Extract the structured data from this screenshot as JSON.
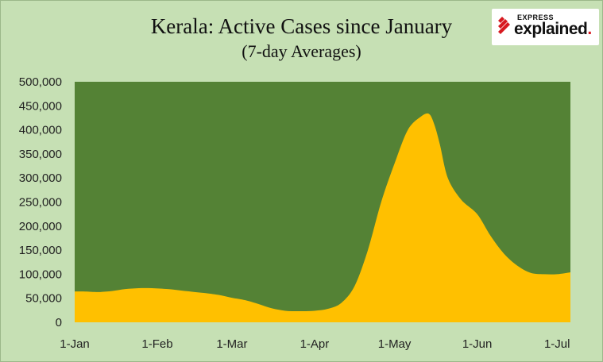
{
  "brand": {
    "top_text": "EXPRESS",
    "main_text": "explained",
    "logo_color": "#d71920"
  },
  "chart_data": {
    "type": "area",
    "title": "Kerala: Active Cases since January",
    "subtitle": "(7-day Averages)",
    "xlabel": "",
    "ylabel": "",
    "y_ticks": [
      "0",
      "50,000",
      "100,000",
      "150,000",
      "200,000",
      "250,000",
      "300,000",
      "350,000",
      "400,000",
      "450,000",
      "500,000"
    ],
    "ylim": [
      0,
      500000
    ],
    "x_ticks": [
      {
        "label": "1-Jan",
        "day": 0
      },
      {
        "label": "1-Feb",
        "day": 31
      },
      {
        "label": "1-Mar",
        "day": 59
      },
      {
        "label": "1-Apr",
        "day": 90
      },
      {
        "label": "1-May",
        "day": 120
      },
      {
        "label": "1-Jun",
        "day": 151
      },
      {
        "label": "1-Jul",
        "day": 181
      }
    ],
    "x_range_days": [
      0,
      186
    ],
    "plot_background": "#548235",
    "fill_color": "#ffc000",
    "grid": false,
    "legend": "none",
    "series": [
      {
        "x": [
          "1-Jan",
          "5-Jan",
          "10-Jan",
          "15-Jan",
          "20-Jan",
          "25-Jan",
          "30-Jan",
          "5-Feb",
          "10-Feb",
          "15-Feb",
          "20-Feb",
          "25-Feb",
          "1-Mar",
          "6-Mar",
          "11-Mar",
          "16-Mar",
          "21-Mar",
          "26-Mar",
          "1-Apr",
          "6-Apr",
          "11-Apr",
          "16-Apr",
          "21-Apr",
          "26-Apr",
          "1-May",
          "6-May",
          "11-May",
          "14-May",
          "16-May",
          "18-May",
          "21-May",
          "26-May",
          "1-Jun",
          "6-Jun",
          "11-Jun",
          "16-Jun",
          "21-Jun",
          "26-Jun",
          "1-Jul",
          "6-Jul"
        ],
        "days": [
          0,
          4,
          9,
          14,
          19,
          24,
          29,
          35,
          40,
          45,
          50,
          55,
          59,
          64,
          69,
          74,
          79,
          84,
          90,
          95,
          100,
          105,
          110,
          115,
          120,
          125,
          130,
          133,
          135,
          137,
          140,
          145,
          151,
          156,
          161,
          166,
          171,
          176,
          181,
          186
        ],
        "values": [
          64000,
          64000,
          63000,
          65000,
          69000,
          71000,
          71000,
          69000,
          66000,
          63000,
          60000,
          56000,
          51000,
          46000,
          38000,
          29000,
          24000,
          23000,
          24000,
          28000,
          40000,
          75000,
          150000,
          250000,
          330000,
          400000,
          428000,
          433000,
          410000,
          370000,
          300000,
          255000,
          225000,
          180000,
          143000,
          118000,
          103000,
          100000,
          100000,
          104000
        ]
      }
    ]
  }
}
